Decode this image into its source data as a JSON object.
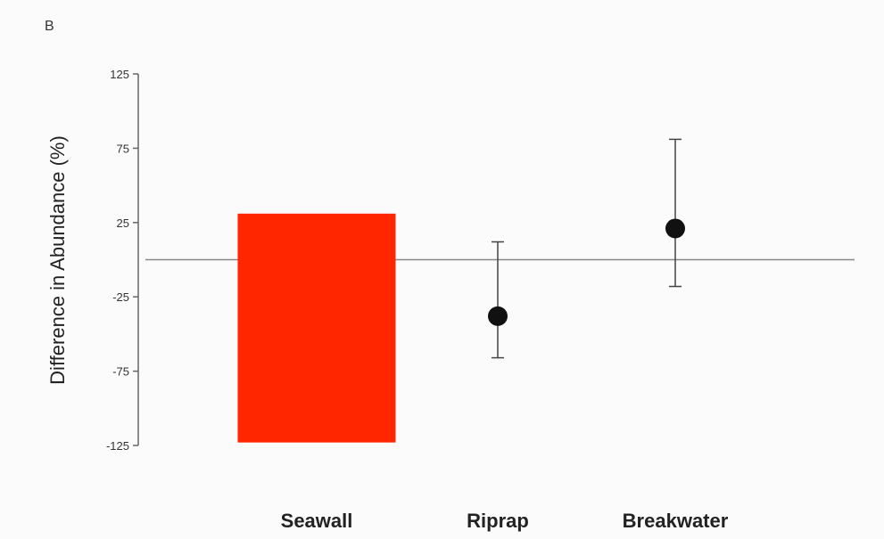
{
  "panel_label": "B",
  "chart_data": {
    "type": "bar",
    "title": "",
    "xlabel": "",
    "ylabel": "Difference in Abundance (%)",
    "ylim": [
      -125,
      125
    ],
    "yticks": [
      125,
      75,
      25,
      -25,
      -75,
      -125
    ],
    "ytick_labels": [
      "125",
      "75",
      "25",
      "-25",
      "-75",
      "-125"
    ],
    "categories": [
      "Seawall",
      "Riprap",
      "Breakwater"
    ],
    "bar": {
      "category": "Seawall",
      "value_top": 31,
      "value_bottom": -123,
      "color": "#ff2600"
    },
    "points": [
      {
        "category": "Riprap",
        "value": -38,
        "err_low": -66,
        "err_high": 12
      },
      {
        "category": "Breakwater",
        "value": 21,
        "err_low": -18,
        "err_high": 81
      }
    ],
    "reference_line": 0,
    "colors": {
      "bar": "#ff2600",
      "point": "#111111",
      "axis": "#666666"
    }
  }
}
